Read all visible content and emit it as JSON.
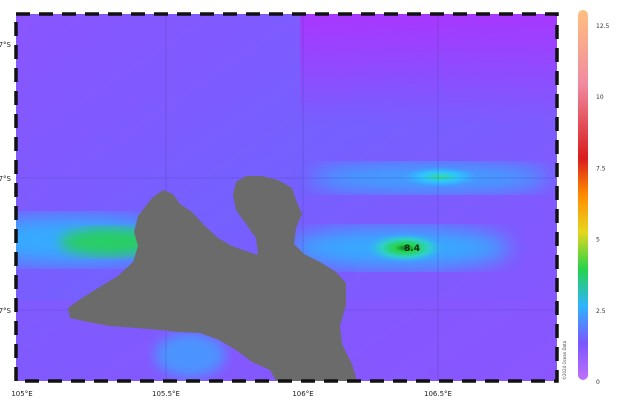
{
  "map": {
    "lon_ticks": [
      "105°E",
      "105.5°E",
      "106°E",
      "106.5°E"
    ],
    "lat_ticks": [
      "7°S",
      "7°S",
      "7°S"
    ],
    "peak_label": "8.4",
    "credit": "©2024 Ocean Data"
  },
  "colorbar": {
    "ticks": [
      "0",
      "2.5",
      "5",
      "7.5",
      "10",
      "12.5"
    ],
    "range": [
      0,
      12.5
    ],
    "colors": [
      "#b030ff",
      "#7a55ff",
      "#2fb4ff",
      "#25d44a",
      "#e7d61e",
      "#ff8c00",
      "#d81e1e",
      "#f04a8a",
      "#ffb36b"
    ]
  },
  "colors": {
    "background_field": "#7a55ff",
    "land": "#6b6b6b",
    "frame_dash": "#111111",
    "high_band_green": "#25d44a",
    "high_band_cyan": "#2fb4ff"
  }
}
